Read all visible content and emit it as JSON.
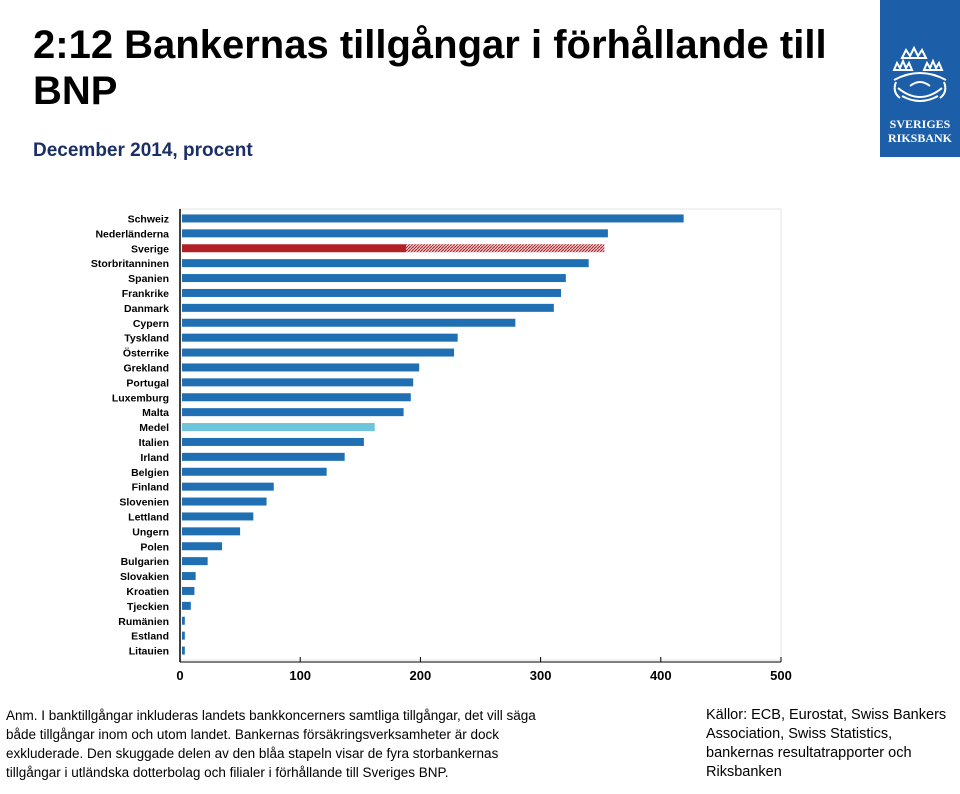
{
  "header": {
    "title": "2:12 Bankernas tillgångar i förhållande till BNP",
    "subtitle": "December 2014, procent"
  },
  "logo": {
    "line1": "SVERIGES",
    "line2": "RIKSBANK"
  },
  "colors": {
    "bar": "#1f6fb2",
    "sverige_domestic": "#b22027",
    "sverige_hatched": "#b22027",
    "medel": "#6ec4d8",
    "subtitle": "#1a2f66",
    "logo_bg": "#1c5ea8"
  },
  "chart_data": {
    "type": "bar",
    "orientation": "horizontal",
    "categories": [
      "Schweiz",
      "Nederländerna",
      "Sverige",
      "Storbritanninen",
      "Spanien",
      "Frankrike",
      "Danmark",
      "Cypern",
      "Tyskland",
      "Österrike",
      "Grekland",
      "Portugal",
      "Luxemburg",
      "Malta",
      "Medel",
      "Italien",
      "Irland",
      "Belgien",
      "Finland",
      "Slovenien",
      "Lettland",
      "Ungern",
      "Polen",
      "Bulgarien",
      "Slovakien",
      "Kroatien",
      "Tjeckien",
      "Rumänien",
      "Estland",
      "Litauien"
    ],
    "values": [
      419,
      356,
      353,
      340,
      321,
      317,
      311,
      279,
      231,
      228,
      199,
      194,
      192,
      186,
      162,
      153,
      137,
      122,
      78,
      72,
      61,
      50,
      35,
      23,
      13,
      12,
      9,
      4,
      4,
      4
    ],
    "sverige_domestic_share": 188,
    "xlim": [
      0,
      500
    ],
    "xticks": [
      "0",
      "100",
      "200",
      "300",
      "400",
      "500"
    ],
    "grid": false
  },
  "note": {
    "text1": "Anm. I banktillgångar inkluderas landets bankkoncerners samtliga tillgångar, det vill säga både tillgångar inom och utom landet. Bankernas försäkringsverksamheter är dock exkluderade. Den skuggade delen av den blåa stapeln visar de fyra storbankernas tillgångar i utländska dotterbolag och filialer i förhållande till Sveriges BNP."
  },
  "sources": {
    "text": "Källor: ECB, Eurostat, Swiss Bankers Association, Swiss Statistics, bankernas resultatrapporter och Riksbanken"
  }
}
